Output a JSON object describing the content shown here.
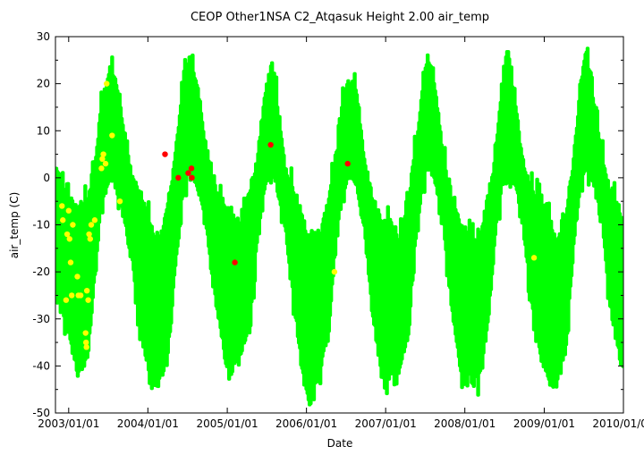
{
  "chart_data": {
    "type": "scatter",
    "title": "CEOP Other1NSA C2_Atqasuk Height 2.00 air_temp",
    "xlabel": "Date",
    "ylabel": "air_temp (C)",
    "xlim": [
      "2002-11-01",
      "2010-01-01"
    ],
    "ylim": [
      -50,
      30
    ],
    "x_ticks": [
      "2003/01/01",
      "2004/01/01",
      "2005/01/01",
      "2006/01/01",
      "2007/01/01",
      "2008/01/01",
      "2009/01/01",
      "2010/01/01"
    ],
    "y_ticks": [
      30,
      20,
      10,
      0,
      -10,
      -20,
      -30,
      -40,
      -50
    ],
    "grid": false,
    "legend": "none",
    "series": [
      {
        "color": "#00ff00",
        "style": "dense points (continuous high-frequency record)",
        "seasonal_envelope": [
          {
            "x": "2002-11-05",
            "min": -22,
            "max": 2
          },
          {
            "x": "2003-01-01",
            "min": -33,
            "max": -5
          },
          {
            "x": "2003-02-15",
            "min": -42,
            "max": -7
          },
          {
            "x": "2003-04-01",
            "min": -37,
            "max": -5
          },
          {
            "x": "2003-05-01",
            "min": -20,
            "max": 3
          },
          {
            "x": "2003-06-01",
            "min": -5,
            "max": 15
          },
          {
            "x": "2003-07-10",
            "min": 0,
            "max": 23
          },
          {
            "x": "2003-08-15",
            "min": -2,
            "max": 19
          },
          {
            "x": "2003-09-15",
            "min": -8,
            "max": 9
          },
          {
            "x": "2003-10-20",
            "min": -17,
            "max": 0
          },
          {
            "x": "2003-12-01",
            "min": -33,
            "max": -4
          },
          {
            "x": "2004-01-15",
            "min": -43,
            "max": -10
          },
          {
            "x": "2004-02-20",
            "min": -44,
            "max": -15
          },
          {
            "x": "2004-04-01",
            "min": -37,
            "max": -5
          },
          {
            "x": "2004-05-01",
            "min": -22,
            "max": 2
          },
          {
            "x": "2004-06-10",
            "min": -3,
            "max": 20
          },
          {
            "x": "2004-07-15",
            "min": 3,
            "max": 26
          },
          {
            "x": "2004-08-20",
            "min": -2,
            "max": 19
          },
          {
            "x": "2004-09-20",
            "min": -7,
            "max": 8
          },
          {
            "x": "2004-10-25",
            "min": -22,
            "max": -1
          },
          {
            "x": "2004-12-01",
            "min": -32,
            "max": -5
          },
          {
            "x": "2005-01-20",
            "min": -41,
            "max": -8
          },
          {
            "x": "2005-03-01",
            "min": -37,
            "max": -11
          },
          {
            "x": "2005-04-15",
            "min": -32,
            "max": -3
          },
          {
            "x": "2005-05-20",
            "min": -12,
            "max": 4
          },
          {
            "x": "2005-06-25",
            "min": -1,
            "max": 18
          },
          {
            "x": "2005-07-25",
            "min": 2,
            "max": 24
          },
          {
            "x": "2005-08-25",
            "min": -3,
            "max": 14
          },
          {
            "x": "2005-09-25",
            "min": -10,
            "max": 2
          },
          {
            "x": "2005-11-01",
            "min": -25,
            "max": -3
          },
          {
            "x": "2005-12-15",
            "min": -42,
            "max": -12
          },
          {
            "x": "2006-01-20",
            "min": -48,
            "max": -12
          },
          {
            "x": "2006-03-01",
            "min": -41,
            "max": -13
          },
          {
            "x": "2006-04-15",
            "min": -33,
            "max": -5
          },
          {
            "x": "2006-05-20",
            "min": -10,
            "max": 5
          },
          {
            "x": "2006-06-20",
            "min": -3,
            "max": 17
          },
          {
            "x": "2006-07-20",
            "min": 1,
            "max": 21
          },
          {
            "x": "2006-08-25",
            "min": -2,
            "max": 17
          },
          {
            "x": "2006-09-25",
            "min": -11,
            "max": 3
          },
          {
            "x": "2006-11-01",
            "min": -28,
            "max": -4
          },
          {
            "x": "2006-12-15",
            "min": -42,
            "max": -10
          },
          {
            "x": "2007-01-20",
            "min": -42,
            "max": -9
          },
          {
            "x": "2007-03-01",
            "min": -41,
            "max": -14
          },
          {
            "x": "2007-04-15",
            "min": -33,
            "max": -5
          },
          {
            "x": "2007-05-20",
            "min": -12,
            "max": 6
          },
          {
            "x": "2007-06-20",
            "min": -1,
            "max": 19
          },
          {
            "x": "2007-07-15",
            "min": 3,
            "max": 26
          },
          {
            "x": "2007-08-20",
            "min": -1,
            "max": 18
          },
          {
            "x": "2007-09-25",
            "min": -10,
            "max": 4
          },
          {
            "x": "2007-11-01",
            "min": -27,
            "max": -4
          },
          {
            "x": "2007-12-15",
            "min": -41,
            "max": -10
          },
          {
            "x": "2008-01-20",
            "min": -41,
            "max": -12
          },
          {
            "x": "2008-03-01",
            "min": -43,
            "max": -15
          },
          {
            "x": "2008-04-15",
            "min": -32,
            "max": -5
          },
          {
            "x": "2008-05-20",
            "min": -12,
            "max": 4
          },
          {
            "x": "2008-06-20",
            "min": -1,
            "max": 19
          },
          {
            "x": "2008-07-15",
            "min": 2,
            "max": 27
          },
          {
            "x": "2008-08-20",
            "min": -1,
            "max": 16
          },
          {
            "x": "2008-09-25",
            "min": -9,
            "max": 3
          },
          {
            "x": "2008-11-01",
            "min": -26,
            "max": -3
          },
          {
            "x": "2008-12-15",
            "min": -38,
            "max": -6
          },
          {
            "x": "2009-01-20",
            "min": -43,
            "max": -7
          },
          {
            "x": "2009-03-01",
            "min": -44,
            "max": -15
          },
          {
            "x": "2009-04-15",
            "min": -34,
            "max": -7
          },
          {
            "x": "2009-05-20",
            "min": -12,
            "max": 5
          },
          {
            "x": "2009-06-20",
            "min": -1,
            "max": 20
          },
          {
            "x": "2009-07-15",
            "min": 2,
            "max": 27
          },
          {
            "x": "2009-08-20",
            "min": -1,
            "max": 15
          },
          {
            "x": "2009-09-25",
            "min": -8,
            "max": 5
          },
          {
            "x": "2009-11-01",
            "min": -27,
            "max": -3
          },
          {
            "x": "2009-12-15",
            "min": -38,
            "max": -7
          },
          {
            "x": "2009-12-31",
            "min": -40,
            "max": -14
          }
        ]
      },
      {
        "color": "#ffff00",
        "style": "large points",
        "points": [
          {
            "x": "2002-12-01",
            "y": -6
          },
          {
            "x": "2002-12-05",
            "y": -9
          },
          {
            "x": "2002-12-20",
            "y": -26
          },
          {
            "x": "2002-12-25",
            "y": -12
          },
          {
            "x": "2003-01-01",
            "y": -7
          },
          {
            "x": "2003-01-05",
            "y": -13
          },
          {
            "x": "2003-01-10",
            "y": -18
          },
          {
            "x": "2003-01-15",
            "y": -25
          },
          {
            "x": "2003-01-20",
            "y": -10
          },
          {
            "x": "2003-02-10",
            "y": -21
          },
          {
            "x": "2003-02-15",
            "y": -25
          },
          {
            "x": "2003-02-25",
            "y": -25
          },
          {
            "x": "2003-03-20",
            "y": -33
          },
          {
            "x": "2003-03-22",
            "y": -35
          },
          {
            "x": "2003-03-24",
            "y": -36
          },
          {
            "x": "2003-03-26",
            "y": -24
          },
          {
            "x": "2003-04-01",
            "y": -26
          },
          {
            "x": "2003-04-05",
            "y": -12
          },
          {
            "x": "2003-04-10",
            "y": -13
          },
          {
            "x": "2003-04-15",
            "y": -10
          },
          {
            "x": "2003-05-01",
            "y": -9
          },
          {
            "x": "2003-06-01",
            "y": 2
          },
          {
            "x": "2003-06-05",
            "y": 4
          },
          {
            "x": "2003-06-10",
            "y": 5
          },
          {
            "x": "2003-06-20",
            "y": 3
          },
          {
            "x": "2003-06-25",
            "y": 20
          },
          {
            "x": "2003-07-20",
            "y": 9
          },
          {
            "x": "2003-08-25",
            "y": -5
          },
          {
            "x": "2006-05-10",
            "y": -20
          },
          {
            "x": "2008-11-15",
            "y": -17
          }
        ]
      },
      {
        "color": "#ff0000",
        "style": "large points",
        "points": [
          {
            "x": "2004-03-20",
            "y": 5
          },
          {
            "x": "2004-05-20",
            "y": 0
          },
          {
            "x": "2004-07-05",
            "y": 1
          },
          {
            "x": "2004-07-20",
            "y": 2
          },
          {
            "x": "2004-07-22",
            "y": 0
          },
          {
            "x": "2005-02-05",
            "y": -18
          },
          {
            "x": "2005-07-20",
            "y": 7
          },
          {
            "x": "2006-07-10",
            "y": 3
          }
        ]
      }
    ]
  }
}
